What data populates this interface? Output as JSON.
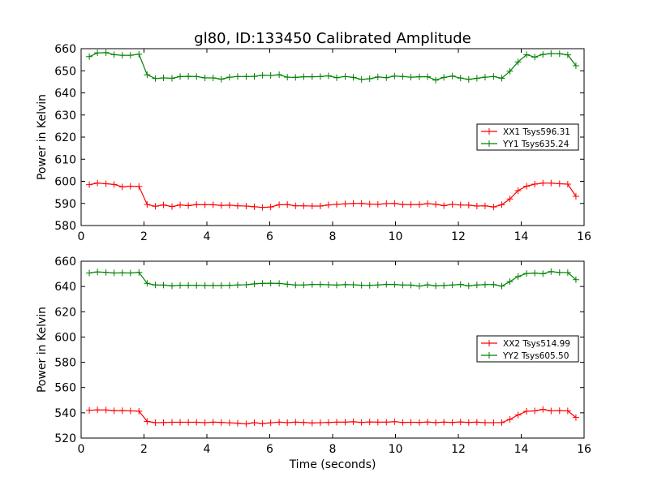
{
  "figure": {
    "title": "gl80, ID:133450 Calibrated Amplitude"
  },
  "chart_data": [
    {
      "type": "line",
      "title": "gl80, ID:133450 Calibrated Amplitude",
      "xlabel": "",
      "ylabel": "Power in Kelvin",
      "xlim": [
        0,
        16
      ],
      "ylim": [
        580,
        660
      ],
      "x_ticks": [
        0,
        2,
        4,
        6,
        8,
        10,
        12,
        14,
        16
      ],
      "y_ticks": [
        580,
        590,
        600,
        610,
        620,
        630,
        640,
        650,
        660
      ],
      "grid": false,
      "legend_position": "center-right",
      "x": [
        0.26,
        0.52,
        0.79,
        1.05,
        1.31,
        1.57,
        1.84,
        2.1,
        2.36,
        2.62,
        2.89,
        3.15,
        3.41,
        3.67,
        3.94,
        4.2,
        4.46,
        4.72,
        4.98,
        5.25,
        5.51,
        5.77,
        6.03,
        6.3,
        6.56,
        6.82,
        7.08,
        7.35,
        7.61,
        7.87,
        8.13,
        8.4,
        8.66,
        8.92,
        9.18,
        9.44,
        9.71,
        9.97,
        10.23,
        10.49,
        10.76,
        11.02,
        11.28,
        11.54,
        11.81,
        12.07,
        12.33,
        12.59,
        12.85,
        13.12,
        13.38,
        13.64,
        13.9,
        14.17,
        14.43,
        14.69,
        14.95,
        15.22,
        15.48,
        15.74
      ],
      "series": [
        {
          "name": "XX1 Tsys596.31",
          "color": "#ff0000",
          "values": [
            598.5,
            599.2,
            598.9,
            598.6,
            597.5,
            597.8,
            597.7,
            589.5,
            588.7,
            589.3,
            588.6,
            589.3,
            589.0,
            589.5,
            589.4,
            589.4,
            589.1,
            589.2,
            588.9,
            588.8,
            588.5,
            588.2,
            588.4,
            589.4,
            589.5,
            588.9,
            588.9,
            588.8,
            588.8,
            589.3,
            589.6,
            589.8,
            590.0,
            590.0,
            589.7,
            589.6,
            589.9,
            590.0,
            589.5,
            589.5,
            589.5,
            589.9,
            589.6,
            589.0,
            589.6,
            589.3,
            589.2,
            588.8,
            588.9,
            588.4,
            589.4,
            592.0,
            595.8,
            597.8,
            598.7,
            599.2,
            599.2,
            598.9,
            598.7,
            593.2
          ]
        },
        {
          "name": "YY1 Tsys635.24",
          "color": "#008000",
          "values": [
            656.4,
            658.1,
            658.2,
            657.3,
            657.0,
            657.0,
            657.5,
            648.2,
            646.5,
            646.8,
            646.6,
            647.4,
            647.5,
            647.4,
            646.8,
            646.8,
            646.2,
            647.1,
            647.4,
            647.4,
            647.5,
            648.0,
            647.9,
            648.2,
            647.1,
            647.0,
            647.3,
            647.3,
            647.4,
            647.7,
            646.9,
            647.4,
            647.0,
            646.1,
            646.4,
            647.2,
            646.9,
            647.6,
            647.4,
            647.1,
            647.3,
            647.3,
            645.8,
            647.0,
            647.6,
            646.7,
            646.1,
            646.6,
            647.1,
            647.4,
            646.6,
            649.8,
            654.0,
            657.3,
            656.2,
            657.4,
            657.8,
            657.7,
            657.2,
            652.3
          ]
        }
      ]
    },
    {
      "type": "line",
      "title": "",
      "xlabel": "Time (seconds)",
      "ylabel": "Power in Kelvin",
      "xlim": [
        0,
        16
      ],
      "ylim": [
        520,
        660
      ],
      "x_ticks": [
        0,
        2,
        4,
        6,
        8,
        10,
        12,
        14,
        16
      ],
      "y_ticks": [
        520,
        540,
        560,
        580,
        600,
        620,
        640,
        660
      ],
      "grid": false,
      "legend_position": "center-right",
      "x": [
        0.26,
        0.52,
        0.79,
        1.05,
        1.31,
        1.57,
        1.84,
        2.1,
        2.36,
        2.62,
        2.89,
        3.15,
        3.41,
        3.67,
        3.94,
        4.2,
        4.46,
        4.72,
        4.98,
        5.25,
        5.51,
        5.77,
        6.03,
        6.3,
        6.56,
        6.82,
        7.08,
        7.35,
        7.61,
        7.87,
        8.13,
        8.4,
        8.66,
        8.92,
        9.18,
        9.44,
        9.71,
        9.97,
        10.23,
        10.49,
        10.76,
        11.02,
        11.28,
        11.54,
        11.81,
        12.07,
        12.33,
        12.59,
        12.85,
        13.12,
        13.38,
        13.64,
        13.9,
        14.17,
        14.43,
        14.69,
        14.95,
        15.22,
        15.48,
        15.74
      ],
      "series": [
        {
          "name": "XX2 Tsys514.99",
          "color": "#ff0000",
          "values": [
            542.0,
            542.3,
            542.2,
            541.6,
            541.7,
            541.5,
            541.3,
            533.2,
            532.2,
            532.3,
            532.5,
            532.5,
            532.5,
            532.5,
            532.2,
            532.6,
            532.4,
            532.1,
            531.8,
            531.2,
            532.2,
            531.5,
            532.1,
            532.6,
            532.2,
            532.6,
            532.4,
            532.0,
            532.2,
            532.4,
            532.6,
            532.6,
            532.9,
            532.4,
            532.8,
            532.6,
            532.6,
            533.0,
            532.4,
            532.5,
            532.4,
            532.7,
            532.3,
            532.6,
            532.4,
            532.8,
            532.4,
            532.6,
            532.2,
            532.2,
            532.3,
            534.8,
            538.3,
            541.2,
            541.5,
            542.7,
            541.5,
            541.7,
            541.5,
            536.3
          ]
        },
        {
          "name": "YY2 Tsys605.50",
          "color": "#008000",
          "values": [
            650.7,
            651.5,
            651.2,
            650.7,
            650.8,
            650.7,
            651.2,
            642.5,
            641.2,
            641.1,
            640.5,
            640.9,
            641.0,
            640.9,
            640.8,
            640.8,
            640.8,
            640.9,
            641.2,
            641.4,
            642.1,
            642.5,
            642.6,
            642.4,
            641.8,
            641.1,
            641.2,
            641.6,
            641.6,
            641.4,
            641.1,
            641.5,
            641.4,
            641.0,
            640.9,
            641.2,
            641.7,
            641.6,
            641.1,
            641.1,
            640.3,
            641.3,
            640.5,
            640.8,
            641.2,
            641.6,
            640.5,
            641.2,
            641.5,
            641.5,
            640.3,
            643.9,
            647.9,
            650.3,
            650.6,
            650.1,
            651.8,
            651.1,
            651.0,
            645.4
          ]
        }
      ]
    }
  ]
}
